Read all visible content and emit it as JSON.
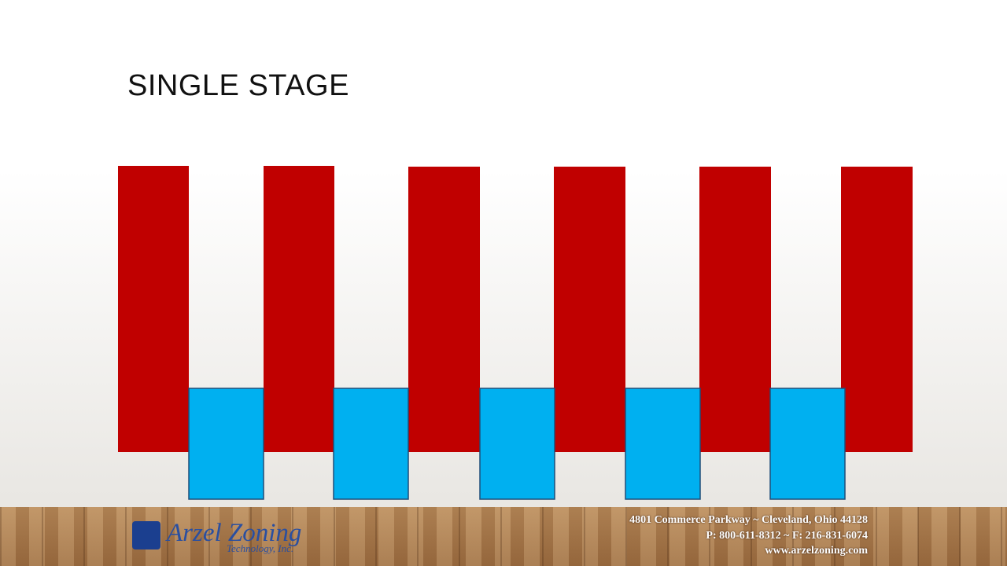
{
  "title": "SINGLE STAGE",
  "logo": {
    "name": "Arzel Zoning",
    "subtitle": "Technology, Inc."
  },
  "footer": {
    "address": "4801 Commerce Parkway ~ Cleveland, Ohio 44128",
    "phone": "P: 800-611-8312 ~ F: 216-831-6074",
    "website": "www.arzelzoning.com"
  }
}
